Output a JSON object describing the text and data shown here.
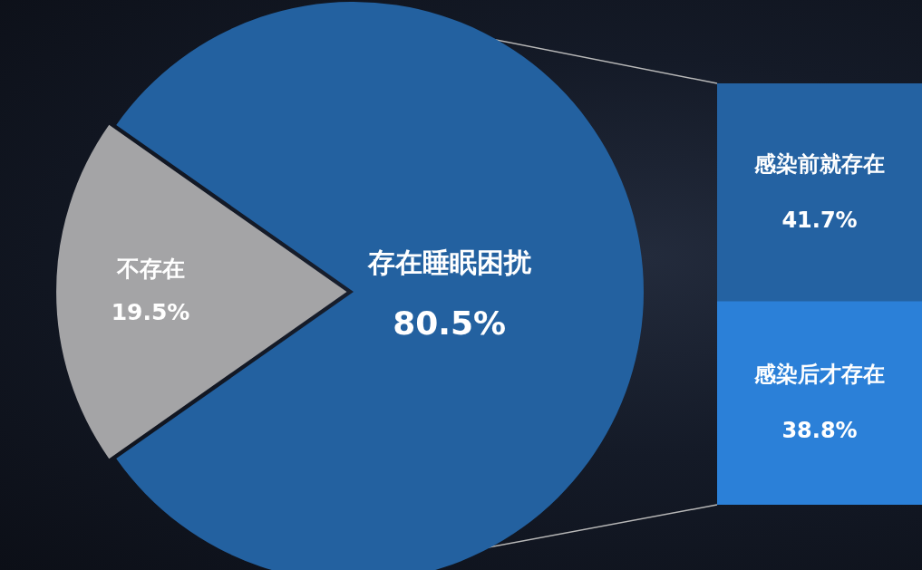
{
  "chart_data": [
    {
      "type": "pie",
      "categories": [
        "存在睡眠困扰",
        "不存在"
      ],
      "values": [
        80.5,
        19.5
      ],
      "colors": [
        "#2361a0",
        "#a4a4a6"
      ],
      "value_labels": [
        "80.5%",
        "19.5%"
      ],
      "legend": false
    },
    {
      "type": "bar",
      "stacked": true,
      "categories": [
        null
      ],
      "series": [
        {
          "name": "感染后才存在",
          "color": "#2b80d8",
          "values": [
            38.8
          ],
          "value_labels": [
            "38.8%"
          ]
        },
        {
          "name": "感染前就存在",
          "color": "#2462a2",
          "values": [
            41.7
          ],
          "value_labels": [
            "41.7%"
          ]
        }
      ],
      "legend": false
    }
  ]
}
